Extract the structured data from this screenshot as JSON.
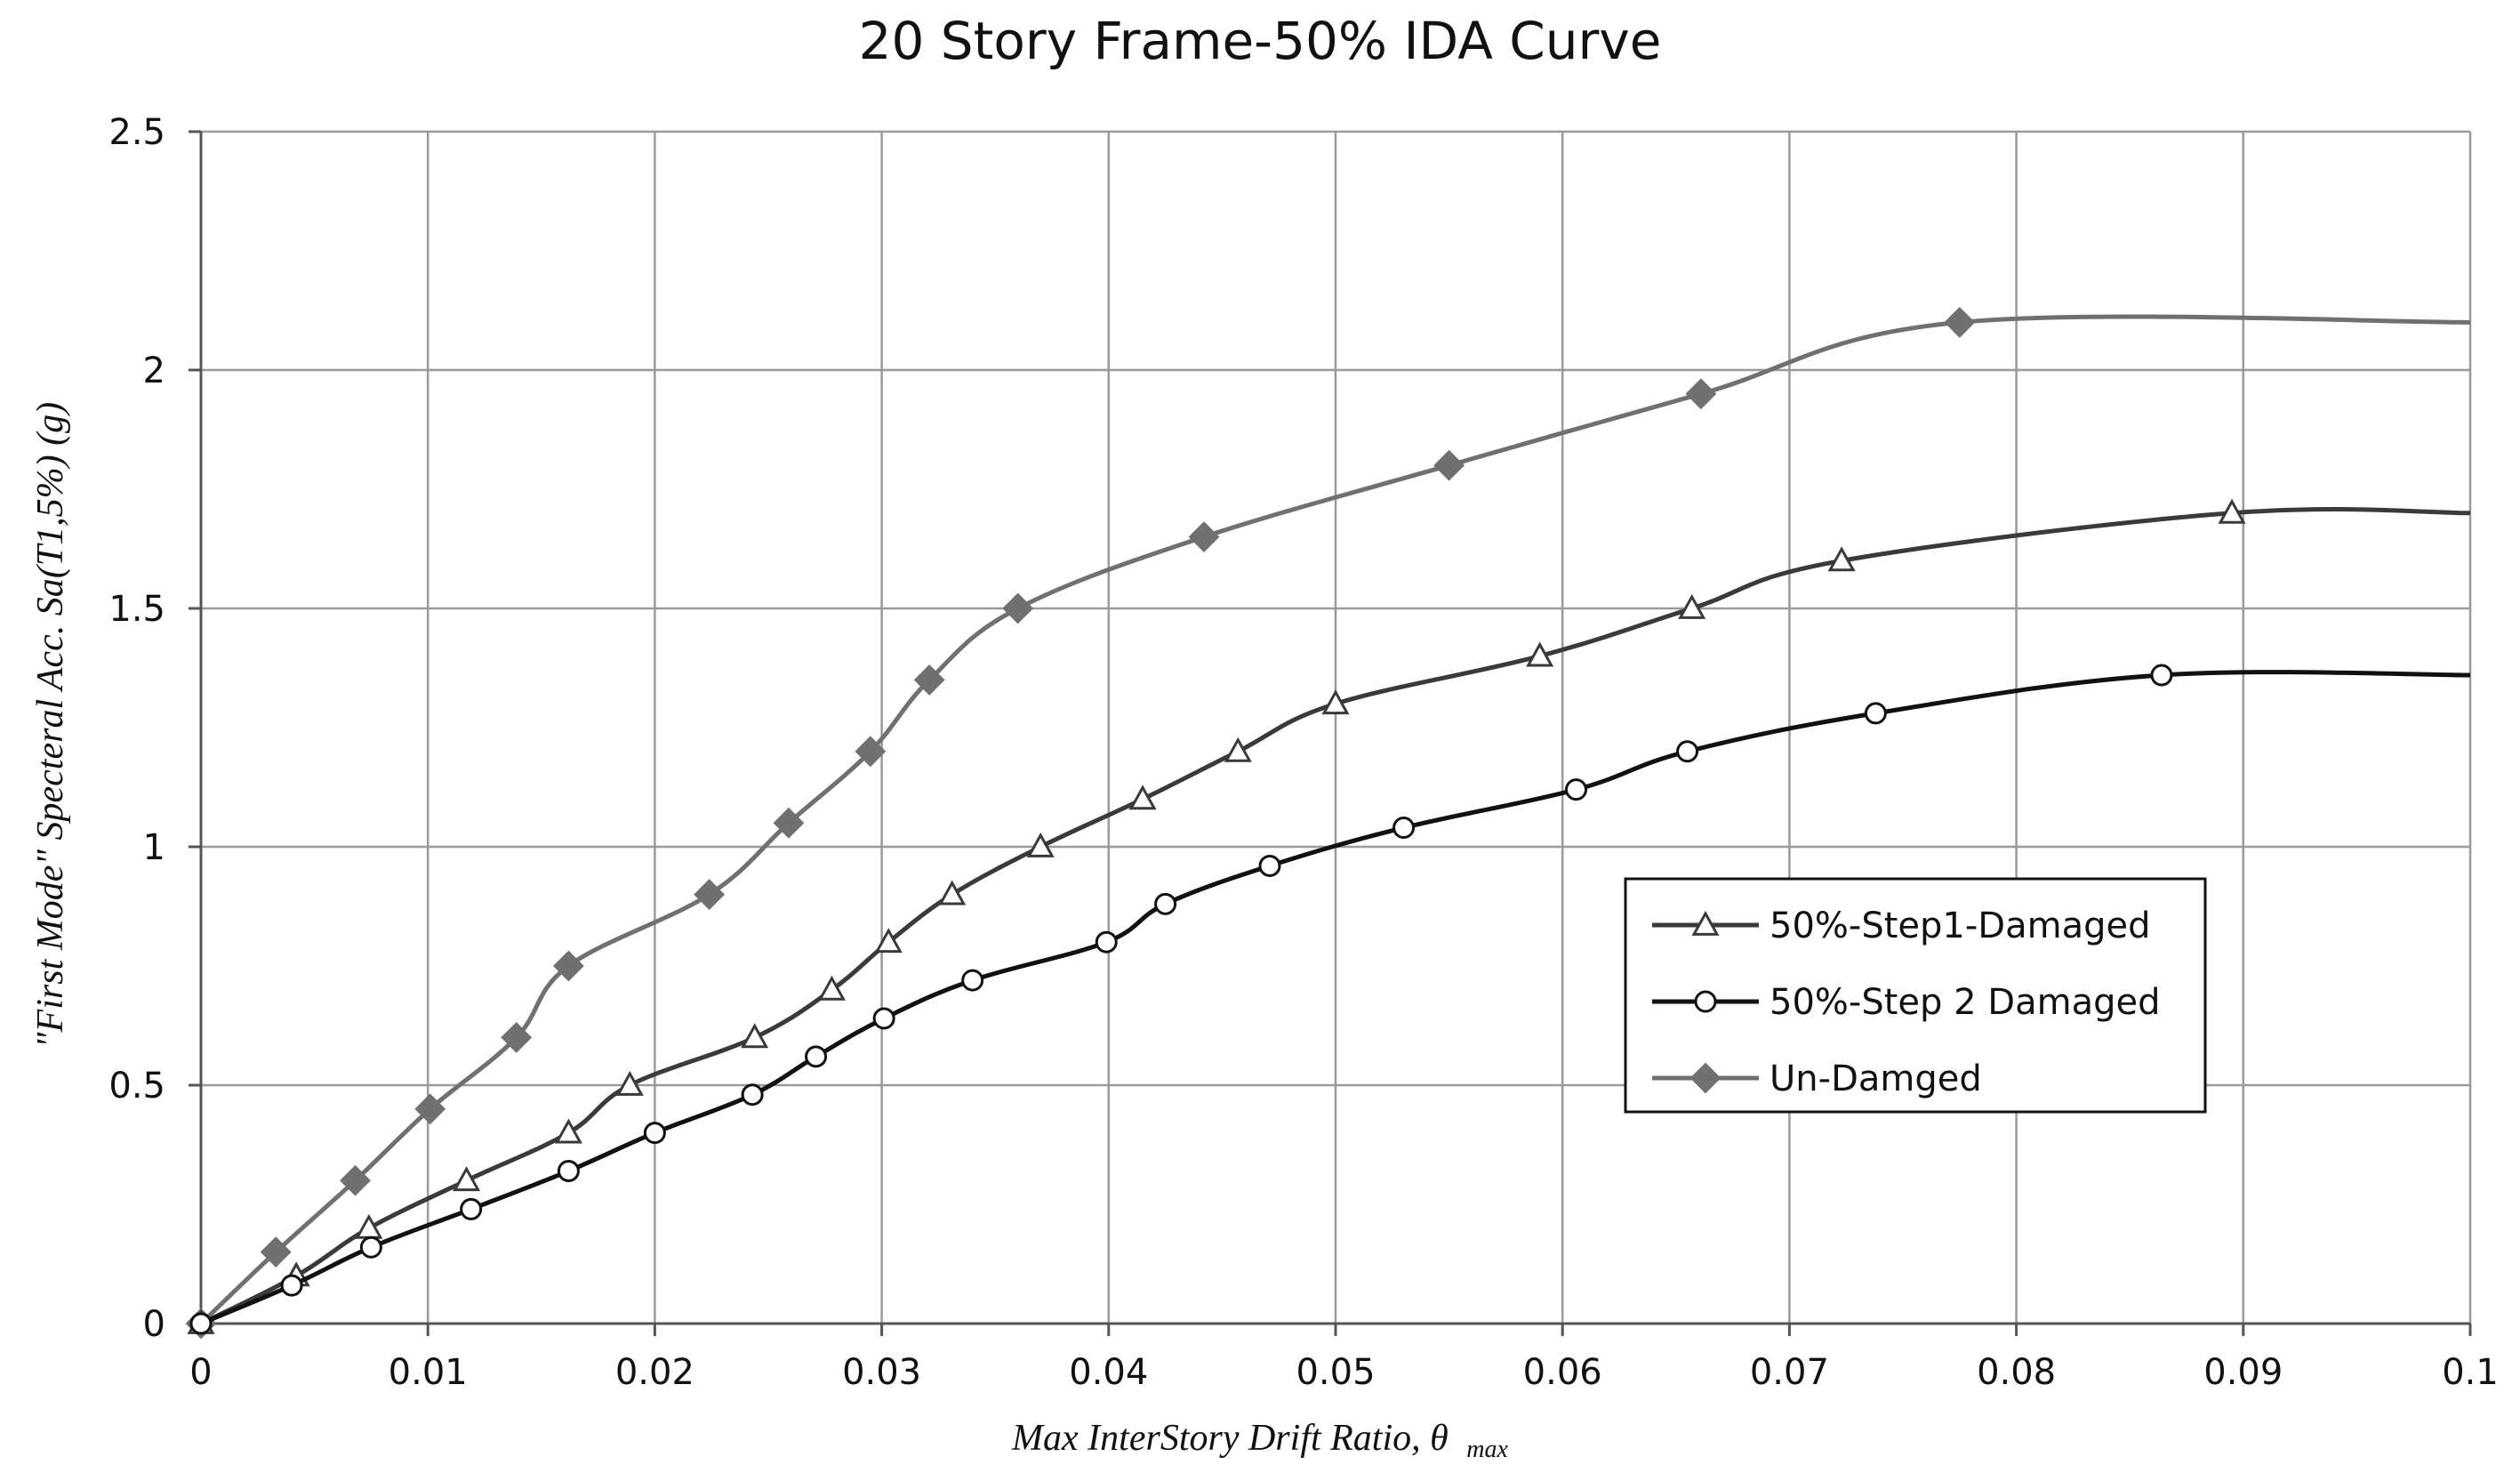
{
  "chart_data": {
    "type": "line",
    "title": "20 Story Frame-50% IDA Curve",
    "xlabel": "Max InterStory Drift Ratio, θ",
    "xlabel_sub": "max",
    "ylabel": "\"First Mode\" Specteral Acc. Sa(T1,5%) (g)",
    "xlim": [
      0,
      0.1
    ],
    "ylim": [
      0,
      2.5
    ],
    "x_ticks": [
      0,
      0.01,
      0.02,
      0.03,
      0.04,
      0.05,
      0.06,
      0.07,
      0.08,
      0.09,
      0.1
    ],
    "x_tick_labels": [
      "0",
      "0.01",
      "0.02",
      "0.03",
      "0.04",
      "0.05",
      "0.06",
      "0.07",
      "0.08",
      "0.09",
      "0.1"
    ],
    "y_ticks": [
      0,
      0.5,
      1,
      1.5,
      2,
      2.5
    ],
    "y_tick_labels": [
      "0",
      "0.5",
      "1",
      "1.5",
      "2",
      "2.5"
    ],
    "grid": true,
    "legend_position": "center-right",
    "series": [
      {
        "name": "50%-Step1-Damaged",
        "marker": "triangle-open",
        "color": "#3a3a3a",
        "x": [
          0,
          0.0042,
          0.0074,
          0.0117,
          0.0162,
          0.0189,
          0.0244,
          0.0278,
          0.0303,
          0.0331,
          0.037,
          0.0415,
          0.0457,
          0.05,
          0.059,
          0.0657,
          0.0723,
          0.0895,
          0.1
        ],
        "y": [
          0,
          0.1,
          0.2,
          0.3,
          0.4,
          0.5,
          0.6,
          0.7,
          0.8,
          0.9,
          1.0,
          1.1,
          1.2,
          1.3,
          1.4,
          1.5,
          1.6,
          1.7,
          1.7
        ]
      },
      {
        "name": "50%-Step 2 Damaged",
        "marker": "circle-open",
        "color": "#111111",
        "x": [
          0,
          0.004,
          0.0075,
          0.0119,
          0.0162,
          0.02,
          0.0243,
          0.0271,
          0.0301,
          0.034,
          0.0399,
          0.0425,
          0.0471,
          0.053,
          0.0606,
          0.0655,
          0.0738,
          0.0864,
          0.1
        ],
        "y": [
          0,
          0.08,
          0.16,
          0.24,
          0.32,
          0.4,
          0.48,
          0.56,
          0.64,
          0.72,
          0.8,
          0.88,
          0.96,
          1.04,
          1.12,
          1.2,
          1.28,
          1.36,
          1.36
        ]
      },
      {
        "name": "Un-Damged",
        "marker": "diamond-filled",
        "color": "#707070",
        "x": [
          0,
          0.0033,
          0.0068,
          0.0101,
          0.0139,
          0.0162,
          0.0224,
          0.0259,
          0.0295,
          0.0321,
          0.036,
          0.0442,
          0.055,
          0.0661,
          0.0775,
          0.1
        ],
        "y": [
          0,
          0.15,
          0.3,
          0.45,
          0.6,
          0.75,
          0.9,
          1.05,
          1.2,
          1.35,
          1.5,
          1.65,
          1.8,
          1.95,
          2.1,
          2.1
        ]
      }
    ]
  }
}
